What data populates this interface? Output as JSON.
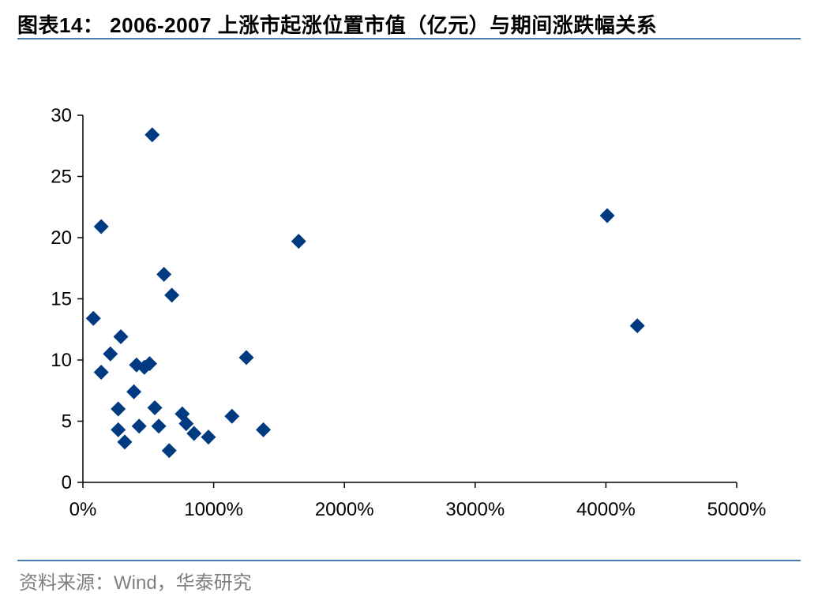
{
  "title": "图表14： 2006-2007 上涨市起涨位置市值（亿元）与期间涨跌幅关系",
  "source": "资料来源：Wind，华泰研究",
  "chart_data": {
    "type": "scatter",
    "title": "图表14： 2006-2007 上涨市起涨位置市值（亿元）与期间涨跌幅关系",
    "xlabel": "",
    "ylabel": "",
    "xlim": [
      0,
      5000
    ],
    "ylim": [
      0,
      30
    ],
    "x_ticks": [
      0,
      1000,
      2000,
      3000,
      4000,
      5000
    ],
    "x_tick_labels": [
      "0%",
      "1000%",
      "2000%",
      "3000%",
      "4000%",
      "5000%"
    ],
    "y_ticks": [
      0,
      5,
      10,
      15,
      20,
      25,
      30
    ],
    "y_tick_labels": [
      "0",
      "5",
      "10",
      "15",
      "20",
      "25",
      "30"
    ],
    "grid": false,
    "marker": "diamond",
    "marker_color": "#003a80",
    "points": [
      {
        "x": 530,
        "y": 28.4
      },
      {
        "x": 140,
        "y": 20.9
      },
      {
        "x": 1650,
        "y": 19.7
      },
      {
        "x": 4010,
        "y": 21.8
      },
      {
        "x": 620,
        "y": 17.0
      },
      {
        "x": 680,
        "y": 15.3
      },
      {
        "x": 80,
        "y": 13.4
      },
      {
        "x": 4240,
        "y": 12.8
      },
      {
        "x": 290,
        "y": 11.9
      },
      {
        "x": 210,
        "y": 10.5
      },
      {
        "x": 1250,
        "y": 10.2
      },
      {
        "x": 410,
        "y": 9.6
      },
      {
        "x": 470,
        "y": 9.4
      },
      {
        "x": 510,
        "y": 9.7
      },
      {
        "x": 140,
        "y": 9.0
      },
      {
        "x": 390,
        "y": 7.4
      },
      {
        "x": 550,
        "y": 6.1
      },
      {
        "x": 270,
        "y": 6.0
      },
      {
        "x": 760,
        "y": 5.6
      },
      {
        "x": 1140,
        "y": 5.4
      },
      {
        "x": 790,
        "y": 4.8
      },
      {
        "x": 430,
        "y": 4.6
      },
      {
        "x": 580,
        "y": 4.6
      },
      {
        "x": 270,
        "y": 4.3
      },
      {
        "x": 1380,
        "y": 4.3
      },
      {
        "x": 850,
        "y": 4.0
      },
      {
        "x": 960,
        "y": 3.7
      },
      {
        "x": 320,
        "y": 3.3
      },
      {
        "x": 660,
        "y": 2.6
      }
    ]
  }
}
